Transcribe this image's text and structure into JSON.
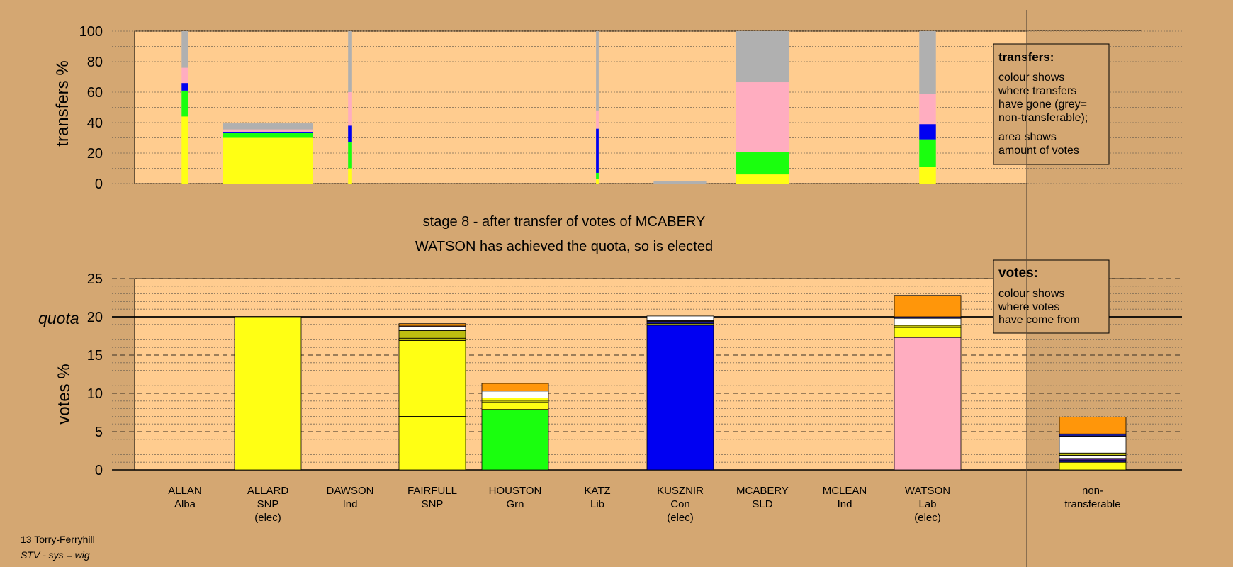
{
  "title_lines": [
    "stage 8 - after transfer of votes of MCABERY",
    "WATSON has achieved the quota, so is elected"
  ],
  "footer": {
    "ward": "13 Torry-Ferryhill",
    "system": "STV - sys = wig"
  },
  "legend_transfers": {
    "heading": "transfers:",
    "para1": [
      "colour shows",
      "where transfers",
      "have gone (grey=",
      "non-transferable);"
    ],
    "para2": [
      "area shows",
      "amount of votes"
    ]
  },
  "legend_votes": {
    "heading": "votes:",
    "para1": [
      "colour shows",
      "where votes",
      "have come from"
    ]
  },
  "colors": {
    "background": "#d4a772",
    "plot_bg": "#ffcc8f",
    "yellow": "#ffff14",
    "green": "#1aff0e",
    "blue": "#0000f2",
    "pink": "#ffadc0",
    "grey": "#b0b0b0",
    "orange": "#ff960a",
    "white": "#ffffff",
    "olive": "#bdbd10",
    "navy": "#1a1a8a",
    "purple": "#8a2be2"
  },
  "chart_data": [
    {
      "type": "bar",
      "name": "transfers",
      "ylabel": "transfers %",
      "ylim": [
        0,
        100
      ],
      "yticks": [
        0,
        20,
        40,
        60,
        80,
        100
      ],
      "categories": [
        "ALLAN",
        "ALLARD",
        "DAWSON",
        "FAIRFULL",
        "HOUSTON",
        "KATZ",
        "KUSZNIR",
        "MCABERY",
        "MCLEAN",
        "WATSON"
      ],
      "width_scale": [
        0.1,
        1.0,
        0.06,
        0,
        0,
        0.04,
        0,
        0.8,
        0.25,
        0.25
      ],
      "stacks": [
        [
          {
            "c": "yellow",
            "v": 44
          },
          {
            "c": "green",
            "v": 17
          },
          {
            "c": "blue",
            "v": 5
          },
          {
            "c": "pink",
            "v": 10
          },
          {
            "c": "grey",
            "v": 24
          }
        ],
        [
          {
            "c": "yellow",
            "v": 30
          },
          {
            "c": "green",
            "v": 3.5
          },
          {
            "c": "blue",
            "v": 0.5
          },
          {
            "c": "pink",
            "v": 1.5
          },
          {
            "c": "grey",
            "v": 4
          }
        ],
        [
          {
            "c": "yellow",
            "v": 10
          },
          {
            "c": "green",
            "v": 17
          },
          {
            "c": "blue",
            "v": 11
          },
          {
            "c": "pink",
            "v": 22
          },
          {
            "c": "grey",
            "v": 40
          }
        ],
        [],
        [],
        [
          {
            "c": "yellow",
            "v": 3
          },
          {
            "c": "green",
            "v": 4
          },
          {
            "c": "blue",
            "v": 29
          },
          {
            "c": "pink",
            "v": 12
          },
          {
            "c": "grey",
            "v": 52
          }
        ],
        [],
        [
          {
            "c": "yellow",
            "v": 6
          },
          {
            "c": "green",
            "v": 14.5
          },
          {
            "c": "blue",
            "v": 0
          },
          {
            "c": "pink",
            "v": 46
          },
          {
            "c": "grey",
            "v": 33.5
          }
        ],
        [],
        [
          {
            "c": "yellow",
            "v": 11
          },
          {
            "c": "green",
            "v": 18
          },
          {
            "c": "blue",
            "v": 10
          },
          {
            "c": "pink",
            "v": 20
          },
          {
            "c": "grey",
            "v": 41
          }
        ]
      ],
      "extra_bar": {
        "category": "MCABERY",
        "offset": -1,
        "width_scale": 0.8,
        "stack": [
          {
            "c": "grey",
            "v": 1.5
          }
        ]
      }
    },
    {
      "type": "bar",
      "name": "votes",
      "ylabel": "votes %",
      "quota_label": "quota",
      "quota": 20,
      "ylim": [
        0,
        25
      ],
      "yticks": [
        0,
        5,
        10,
        15,
        20,
        25
      ],
      "categories": [
        "ALLAN",
        "ALLARD",
        "DAWSON",
        "FAIRFULL",
        "HOUSTON",
        "KATZ",
        "KUSZNIR",
        "MCABERY",
        "MCLEAN",
        "WATSON",
        "non-transferable"
      ],
      "sublabels": [
        [
          "Alba"
        ],
        [
          "SNP",
          "(elec)"
        ],
        [
          "Ind"
        ],
        [
          "SNP"
        ],
        [
          "Grn"
        ],
        [
          "Lib"
        ],
        [
          "Con",
          "(elec)"
        ],
        [
          "SLD"
        ],
        [
          "Ind"
        ],
        [
          "Lab",
          "(elec)"
        ],
        [
          "transferable"
        ]
      ],
      "name_lines": [
        [
          "ALLAN"
        ],
        [
          "ALLARD"
        ],
        [
          "DAWSON"
        ],
        [
          "FAIRFULL"
        ],
        [
          "HOUSTON"
        ],
        [
          "KATZ"
        ],
        [
          "KUSZNIR"
        ],
        [
          "MCABERY"
        ],
        [
          "MCLEAN"
        ],
        [
          "WATSON"
        ],
        [
          "non-"
        ]
      ],
      "stacks": [
        [],
        [
          {
            "c": "yellow",
            "v": 20
          }
        ],
        [],
        [
          {
            "c": "yellow",
            "v": 7
          },
          {
            "c": "yellow",
            "v": 9.9
          },
          {
            "c": "olive",
            "v": 0.3
          },
          {
            "c": "olive",
            "v": 1.0
          },
          {
            "c": "white",
            "v": 0.5
          },
          {
            "c": "pink",
            "v": 0.1
          },
          {
            "c": "orange",
            "v": 0.3
          }
        ],
        [
          {
            "c": "green",
            "v": 7.9
          },
          {
            "c": "yellow",
            "v": 0.9
          },
          {
            "c": "olive",
            "v": 0.3
          },
          {
            "c": "yellow",
            "v": 0.3
          },
          {
            "c": "white",
            "v": 0.9
          },
          {
            "c": "orange",
            "v": 1.0
          }
        ],
        [],
        [
          {
            "c": "blue",
            "v": 18.9
          },
          {
            "c": "olive",
            "v": 0.2
          },
          {
            "c": "navy",
            "v": 0.3
          },
          {
            "c": "pink",
            "v": 0.1
          },
          {
            "c": "white",
            "v": 0.6
          }
        ],
        [],
        [],
        [
          {
            "c": "pink",
            "v": 17.3
          },
          {
            "c": "yellow",
            "v": 0.7
          },
          {
            "c": "yellow",
            "v": 0.6
          },
          {
            "c": "olive",
            "v": 0.3
          },
          {
            "c": "white",
            "v": 0.9
          },
          {
            "c": "navy",
            "v": 0.2
          },
          {
            "c": "orange",
            "v": 2.8
          }
        ],
        [
          {
            "c": "yellow",
            "v": 1.0
          },
          {
            "c": "navy",
            "v": 0.3
          },
          {
            "c": "purple",
            "v": 0.2
          },
          {
            "c": "white",
            "v": 0.4
          },
          {
            "c": "olive",
            "v": 0.3
          },
          {
            "c": "white",
            "v": 2.2
          },
          {
            "c": "navy",
            "v": 0.3
          },
          {
            "c": "orange",
            "v": 2.2
          }
        ]
      ]
    }
  ]
}
